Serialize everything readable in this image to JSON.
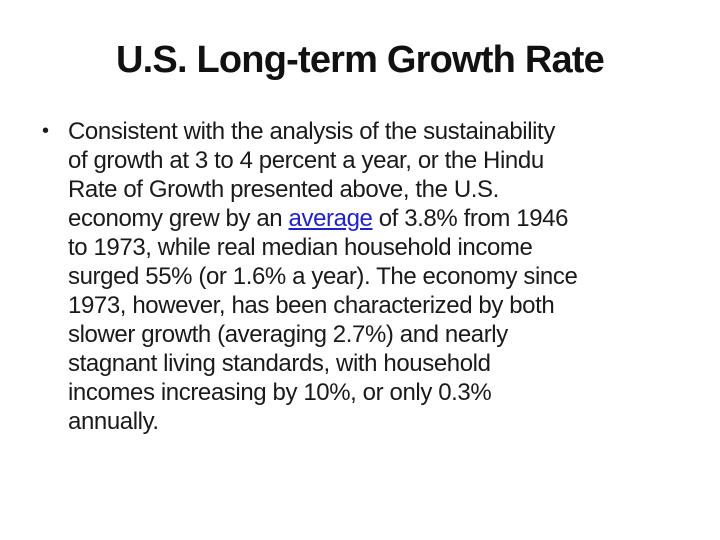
{
  "slide": {
    "title": "U.S. Long-term Growth Rate",
    "bullet_char": "•",
    "body": {
      "lines": [
        [
          {
            "t": "Consistent with the analysis of the sustainability"
          }
        ],
        [
          {
            "t": "of growth at 3 to 4 percent a year, or the Hindu"
          }
        ],
        [
          {
            "t": "Rate of Growth presented above, the U.S."
          }
        ],
        [
          {
            "t": "economy grew by an "
          },
          {
            "t": "average",
            "link": true
          },
          {
            "t": " of 3.8% from 1946"
          }
        ],
        [
          {
            "t": "to 1973, while real median household income"
          }
        ],
        [
          {
            "t": "surged 55% (or 1.6% a year). The economy since"
          }
        ],
        [
          {
            "t": "1973, however, has been characterized by both"
          }
        ],
        [
          {
            "t": "slower growth (averaging 2.7%) and nearly"
          }
        ],
        [
          {
            "t": "stagnant living standards, with household"
          }
        ],
        [
          {
            "t": "incomes increasing by 10%, or only 0.3%"
          }
        ],
        [
          {
            "t": "annually."
          }
        ]
      ]
    }
  },
  "colors": {
    "bg": "#ffffff",
    "title": "#111111",
    "text": "#1a1a1a",
    "link": "#2121cc"
  }
}
